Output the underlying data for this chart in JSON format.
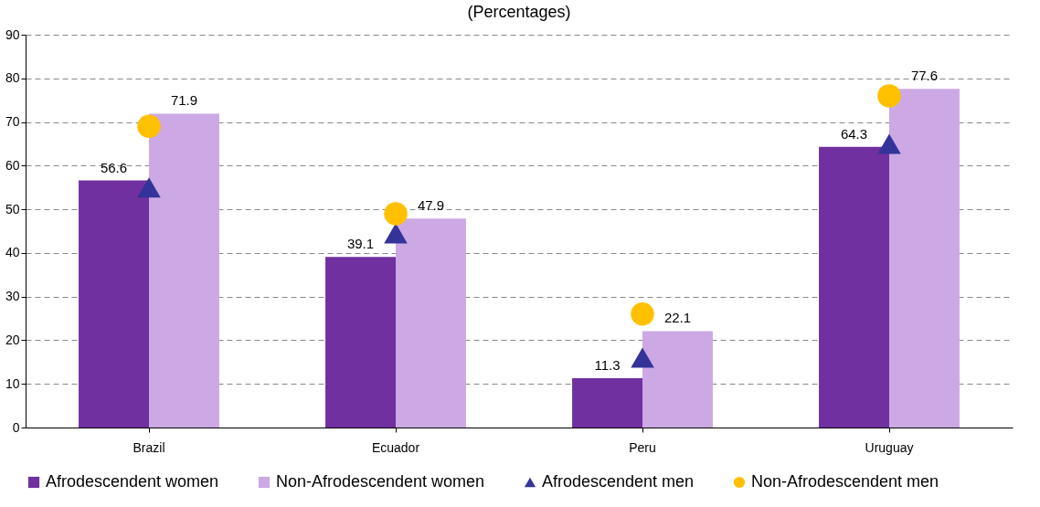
{
  "chart_data": {
    "type": "bar",
    "title": "(Percentages)",
    "categories": [
      "Brazil",
      "Ecuador",
      "Peru",
      "Uruguay"
    ],
    "series": [
      {
        "name": "Afrodescendent women",
        "color": "#7030a0",
        "values": [
          56.6,
          39.1,
          11.3,
          64.3
        ],
        "value_labels": [
          "56.6",
          "39.1",
          "11.3",
          "64.3"
        ]
      },
      {
        "name": "Non-Afrodescendent women",
        "color": "#cca9e4",
        "values": [
          71.9,
          47.9,
          22.1,
          77.6
        ],
        "value_labels": [
          "71.9",
          "47.9",
          "22.1",
          "77.6"
        ]
      },
      {
        "name": "Afrodescendent men",
        "type": "scatter",
        "marker": "triangle",
        "color": "#333399",
        "values": [
          55,
          44.5,
          16,
          65
        ]
      },
      {
        "name": "Non-Afrodescendent men",
        "type": "scatter",
        "marker": "circle",
        "color": "#ffc000",
        "values": [
          69,
          49,
          26,
          76
        ]
      }
    ],
    "ylim": [
      0,
      90
    ],
    "yticks": [
      0,
      10,
      20,
      30,
      40,
      50,
      60,
      70,
      80,
      90
    ],
    "grid": "y",
    "legend": "bottom"
  }
}
